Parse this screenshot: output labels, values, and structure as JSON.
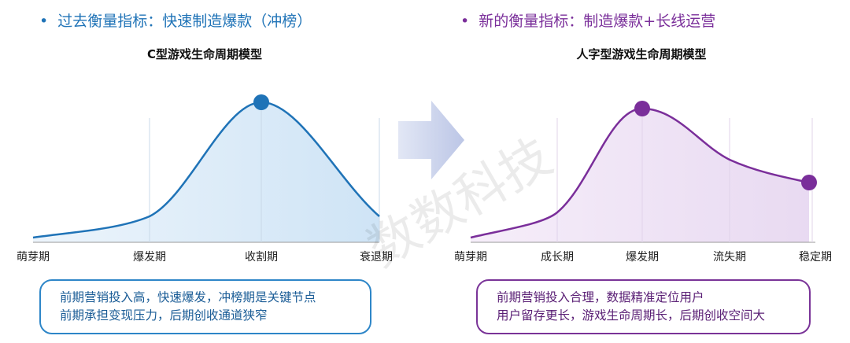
{
  "left": {
    "heading": "过去衡量指标：快速制造爆款（冲榜）",
    "chart_title": "C型游戏生命周期模型",
    "stages": [
      "萌芽期",
      "爆发期",
      "收割期",
      "衰退期"
    ],
    "note_lines": [
      "前期营销投入高，快速爆发，冲榜期是关键节点",
      "前期承担变现压力，后期创收通道狭窄"
    ],
    "accent_color": "#1f73b7"
  },
  "right": {
    "heading": "新的衡量指标：制造爆款+长线运营",
    "chart_title": "人字型游戏生命周期模型",
    "stages": [
      "萌芽期",
      "成长期",
      "爆发期",
      "流失期",
      "稳定期"
    ],
    "note_lines": [
      "前期营销投入合理，数据精准定位用户",
      "用户留存更长，游戏生命周期长，后期创收空间大"
    ],
    "accent_color": "#7a2e9a"
  },
  "watermark": "数数科技",
  "arrow_icon": "arrow-right-icon"
}
